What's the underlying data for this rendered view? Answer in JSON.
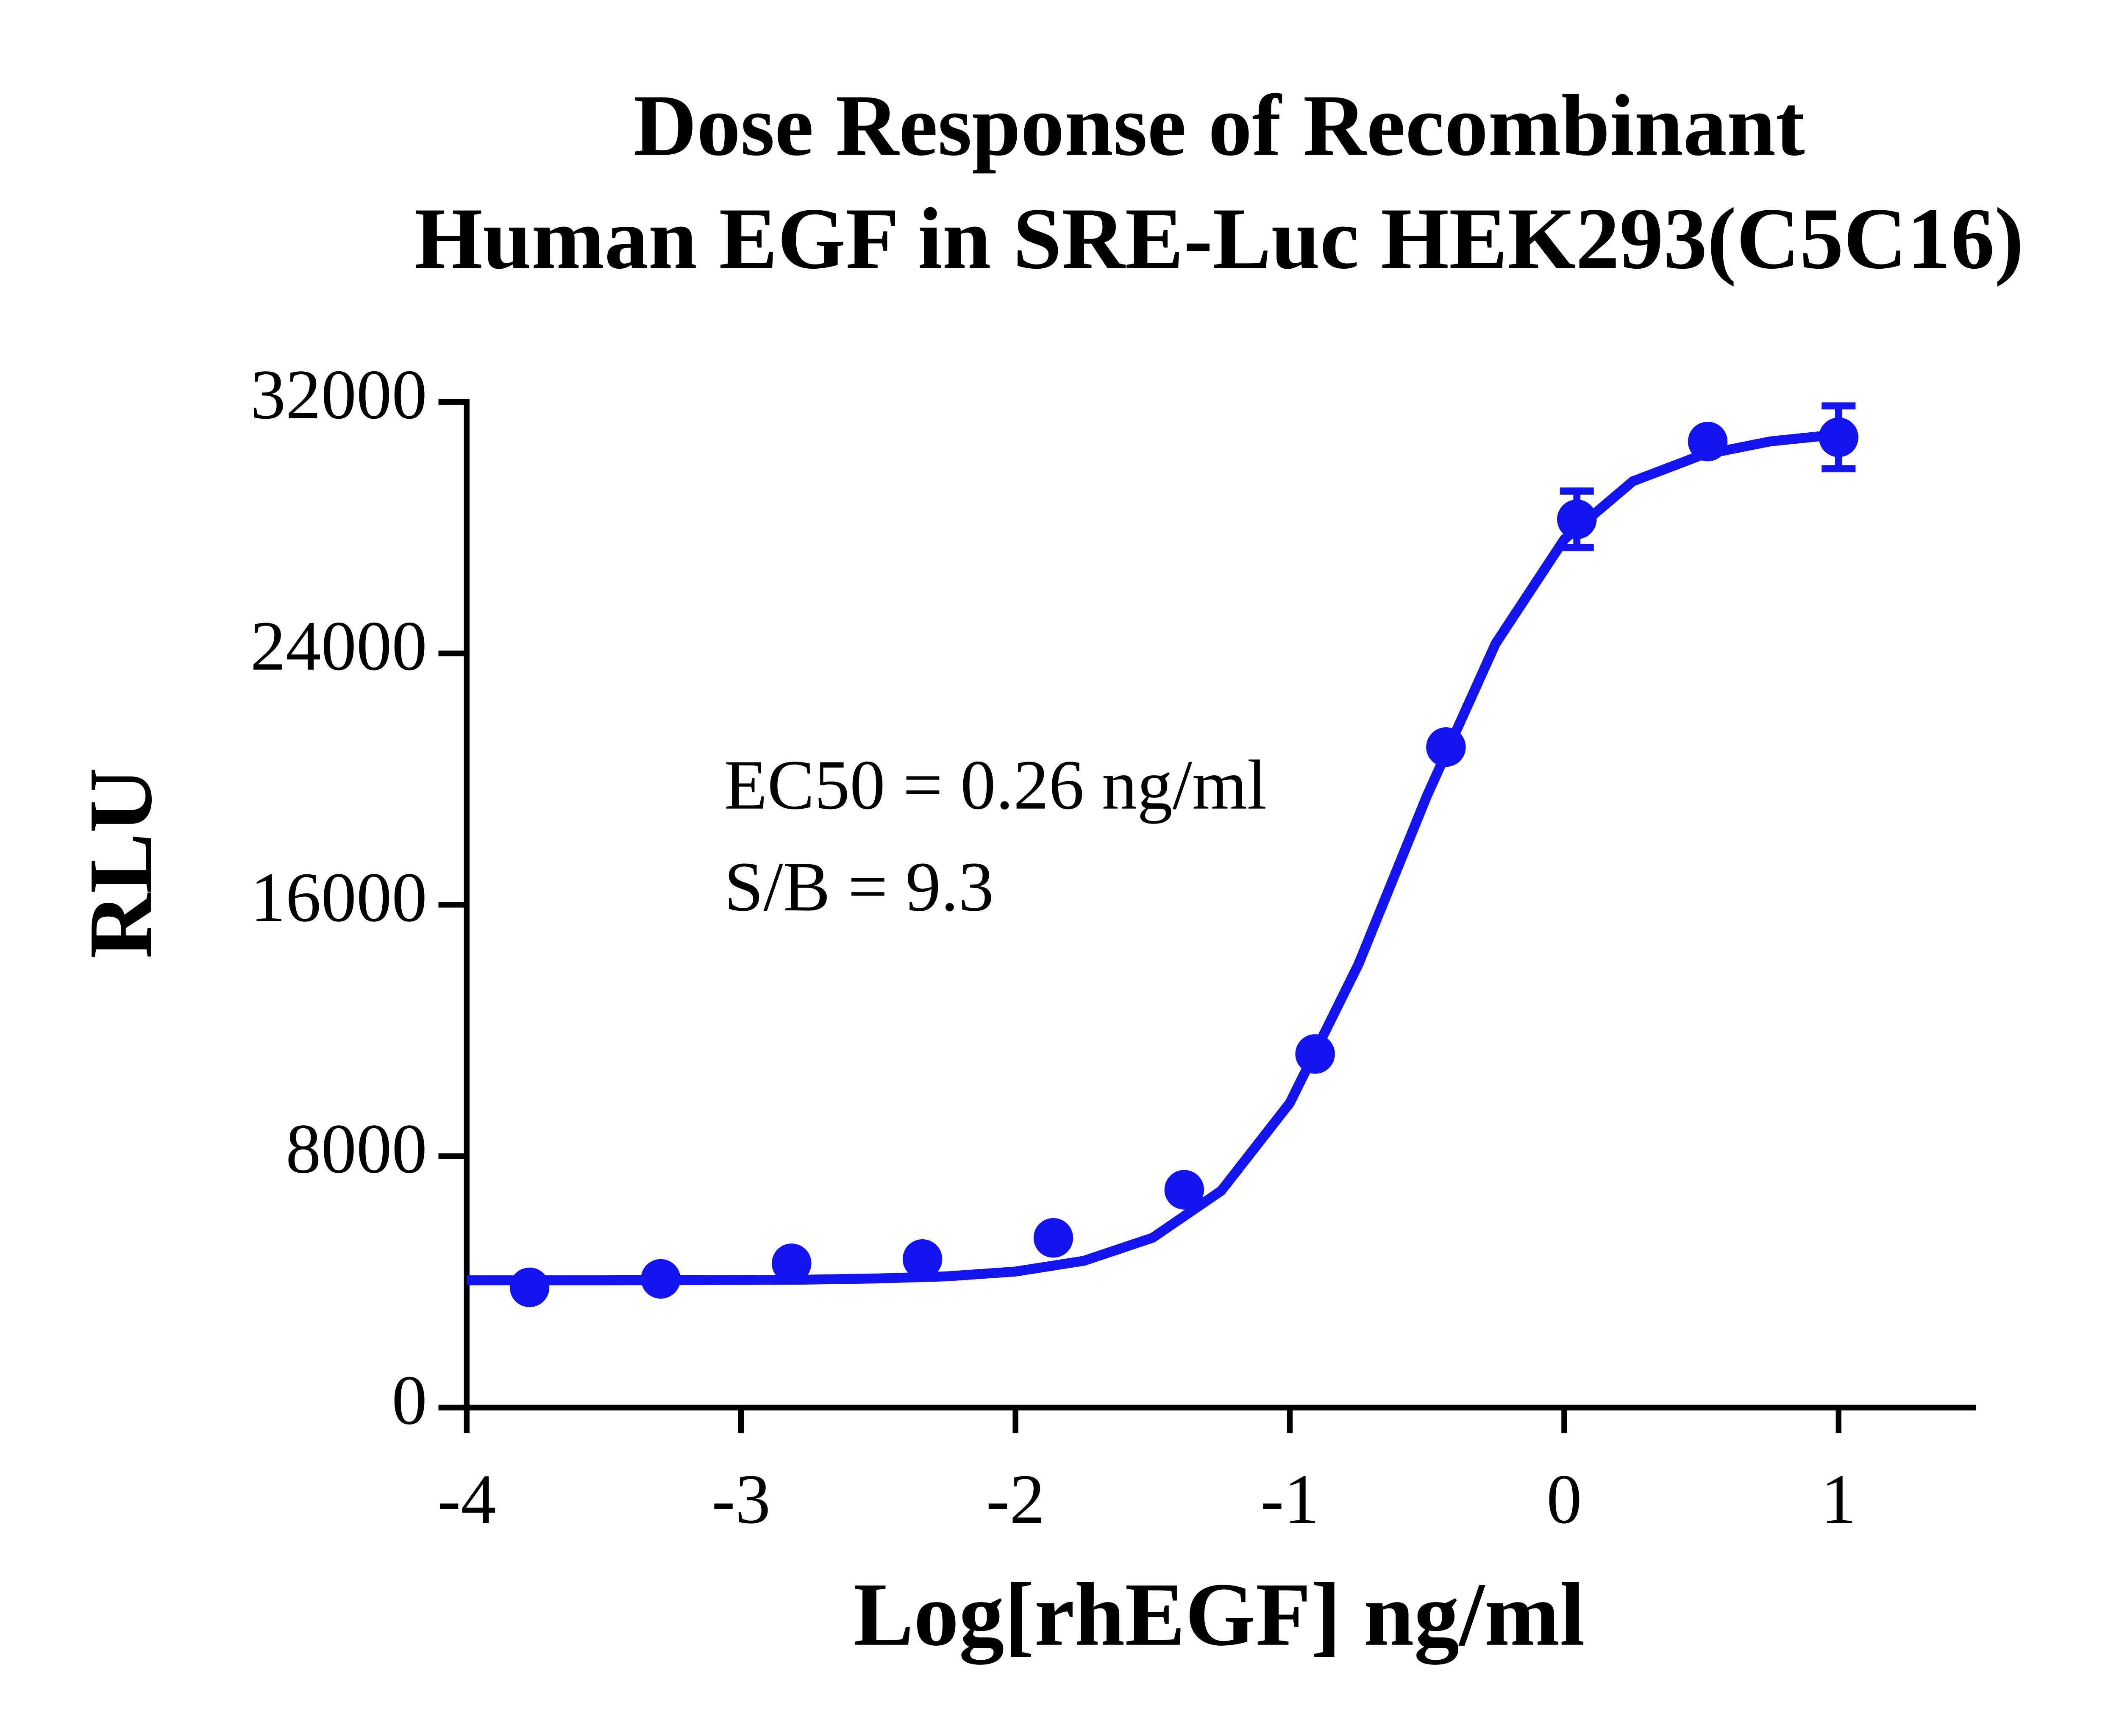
{
  "chart_data": {
    "type": "scatter",
    "title": [
      "Dose Response of Recombinant",
      "Human EGF in SRE-Luc HEK293(C5C16)"
    ],
    "x_label": "Log[rhEGF] ng/ml",
    "y_label": "RLU",
    "annotations": [
      "EC50 = 0.26 ng/ml",
      "S/B = 9.3"
    ],
    "xlim": [
      -4,
      1.5
    ],
    "xticks": [
      -4,
      -3,
      -2,
      -1,
      0,
      1
    ],
    "ylim": [
      0,
      32000
    ],
    "yticks": [
      0,
      8000,
      16000,
      24000,
      32000
    ],
    "color": "#1414f0",
    "x": [
      -3.771,
      -3.293,
      -2.816,
      -2.339,
      -1.862,
      -1.385,
      -0.908,
      -0.431,
      0.046,
      0.523,
      1.0
    ],
    "values": [
      3826,
      4096,
      4591,
      4726,
      5401,
      6931,
      11252,
      21018,
      28265,
      30740,
      30875
    ],
    "errors": [
      null,
      null,
      null,
      null,
      null,
      null,
      null,
      null,
      900,
      null,
      1000
    ],
    "fit": {
      "x": [
        -4,
        -3.75,
        -3.5,
        -3.25,
        -3,
        -2.75,
        -2.5,
        -2.25,
        -2,
        -1.75,
        -1.5,
        -1.25,
        -1,
        -0.75,
        -0.5,
        -0.25,
        0,
        0.25,
        0.5,
        0.75,
        1
      ],
      "values": [
        4050,
        4051,
        4052,
        4055,
        4061,
        4075,
        4107,
        4176,
        4331,
        4671,
        5404,
        6899,
        9694,
        14106,
        19476,
        24311,
        27624,
        29476,
        30307,
        30746,
        30970
      ]
    }
  }
}
